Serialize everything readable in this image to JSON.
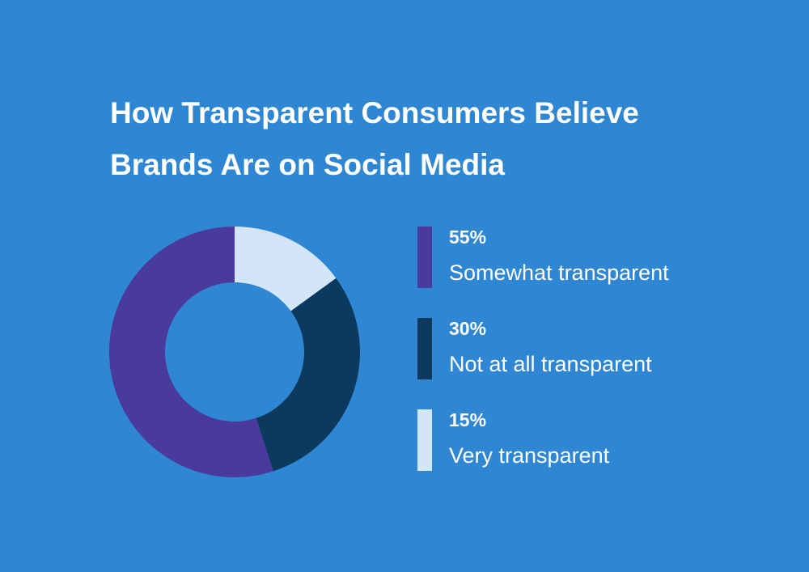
{
  "chart_data": {
    "type": "pie",
    "title": [
      "How Transparent Consumers Believe",
      "Brands Are on Social Media"
    ],
    "slices": [
      {
        "label": "Somewhat transparent",
        "value": 55,
        "value_label": "55%",
        "color": "#4a3a9b"
      },
      {
        "label": "Not at all transparent",
        "value": 30,
        "value_label": "30%",
        "color": "#0c3a5e"
      },
      {
        "label": "Very transparent",
        "value": 15,
        "value_label": "15%",
        "color": "#d3e6f7"
      }
    ],
    "donut": true,
    "legend_position": "right"
  },
  "colors": {
    "background": "#2f86d3",
    "text": "#ffffff"
  }
}
